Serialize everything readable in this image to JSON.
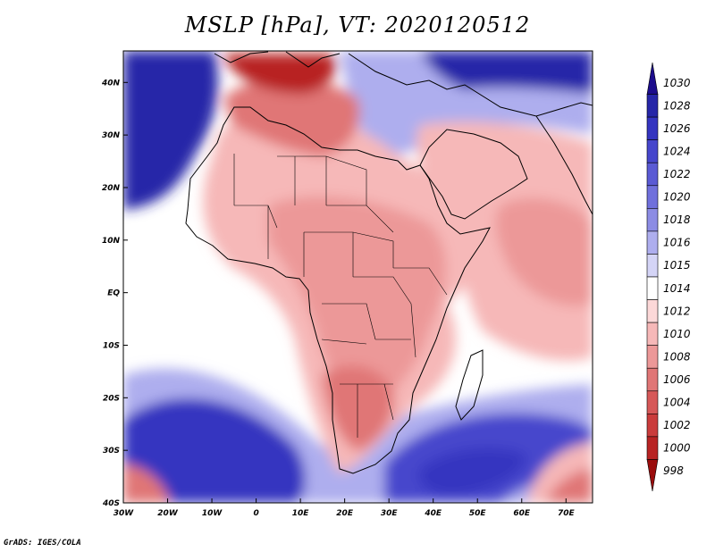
{
  "title": "MSLP [hPa], VT: 2020120512",
  "credit": "GrADS: IGES/COLA",
  "map": {
    "lon_range": [
      -30,
      76
    ],
    "lat_range": [
      -40,
      46
    ],
    "x_ticks": [
      "30W",
      "20W",
      "10W",
      "0",
      "10E",
      "20E",
      "30E",
      "40E",
      "50E",
      "60E",
      "70E"
    ],
    "y_ticks": [
      "40N",
      "30N",
      "20N",
      "10N",
      "EQ",
      "10S",
      "20S",
      "30S",
      "40S"
    ]
  },
  "colorbar": {
    "levels": [
      "1030",
      "1028",
      "1026",
      "1024",
      "1022",
      "1020",
      "1018",
      "1016",
      "1015",
      "1014",
      "1012",
      "1010",
      "1008",
      "1006",
      "1004",
      "1002",
      "1000",
      "998"
    ],
    "colors": [
      "#1c0c8c",
      "#2626a8",
      "#3434c0",
      "#4646cc",
      "#5a5ad4",
      "#7070dc",
      "#8c8ce4",
      "#aeaeee",
      "#d4d4f6",
      "#ffffff",
      "#fcd8d8",
      "#f6b8b8",
      "#ec9898",
      "#e07676",
      "#d65858",
      "#ca3c3c",
      "#b82424",
      "#9a0c0c"
    ]
  },
  "regions": [
    {
      "name": "south-atlantic-high",
      "color": "#3434c0"
    },
    {
      "name": "indian-ocean-high",
      "color": "#4646cc"
    },
    {
      "name": "north-atlantic-high",
      "color": "#2626a8"
    },
    {
      "name": "saharan-low",
      "color": "#e07676"
    },
    {
      "name": "mediterranean-low",
      "color": "#b82424"
    },
    {
      "name": "central-africa",
      "color": "#ec9898"
    },
    {
      "name": "kalahari-low",
      "color": "#e07676"
    },
    {
      "name": "arabian-sea",
      "color": "#f6b8b8"
    },
    {
      "name": "mid-east-high",
      "color": "#aeaeee"
    },
    {
      "name": "asia-high",
      "color": "#2626a8"
    }
  ]
}
